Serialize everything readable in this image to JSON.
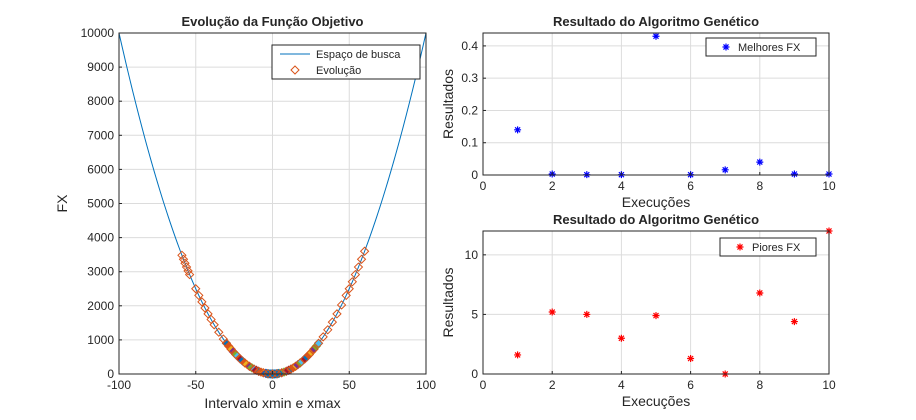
{
  "chart_data": [
    {
      "type": "line+scatter",
      "title": "Evolução da Função Objetivo",
      "xlabel": "Intervalo xmin e xmax",
      "ylabel": "FX",
      "xlim": [
        -100,
        100
      ],
      "ylim": [
        0,
        10000
      ],
      "xticks": [
        -100,
        -50,
        0,
        50,
        100
      ],
      "yticks": [
        0,
        1000,
        2000,
        3000,
        4000,
        5000,
        6000,
        7000,
        8000,
        9000,
        10000
      ],
      "grid": true,
      "legend": {
        "placement": "top-right",
        "entries": [
          "Espaço de busca",
          "Evolução"
        ]
      },
      "series": [
        {
          "name": "Espaço de busca",
          "kind": "line",
          "function": "x^2",
          "color": "#0072BD"
        },
        {
          "name": "Evolução",
          "kind": "scatter",
          "marker": "diamond",
          "color": "#D95319",
          "x": [
            -59,
            -58,
            -57,
            -56,
            -55,
            -54,
            -50,
            -48,
            -46,
            -44,
            -42,
            -40,
            -38,
            -35,
            -32,
            -30,
            -27,
            -24,
            -21,
            -18,
            -15,
            -12,
            -9,
            -6,
            -3,
            0,
            3,
            6,
            9,
            12,
            15,
            18,
            21,
            24,
            27,
            30,
            33,
            36,
            39,
            42,
            45,
            48,
            50,
            52,
            54,
            56,
            58,
            60
          ]
        }
      ]
    },
    {
      "type": "scatter",
      "title": "Resultado do Algoritmo Genético",
      "xlabel": "Execuções",
      "ylabel": "Resultados",
      "xlim": [
        0,
        10
      ],
      "ylim": [
        0,
        0.44
      ],
      "xticks": [
        0,
        2,
        4,
        6,
        8,
        10
      ],
      "yticks": [
        0,
        0.1,
        0.2,
        0.3,
        0.4
      ],
      "grid": true,
      "legend": {
        "placement": "top-right",
        "entries": [
          "Melhores FX"
        ]
      },
      "series": [
        {
          "name": "Melhores FX",
          "marker": "asterisk",
          "color": "#0000FF",
          "x": [
            1,
            2,
            3,
            4,
            5,
            6,
            7,
            8,
            9,
            10
          ],
          "values": [
            0.14,
            0.003,
            0.001,
            0.001,
            0.43,
            0.001,
            0.016,
            0.04,
            0.003,
            0.003
          ]
        }
      ]
    },
    {
      "type": "scatter",
      "title": "Resultado do Algoritmo Genético",
      "xlabel": "Execuções",
      "ylabel": "Resultados",
      "xlim": [
        0,
        10
      ],
      "ylim": [
        0,
        12
      ],
      "xticks": [
        0,
        2,
        4,
        6,
        8,
        10
      ],
      "yticks": [
        0,
        5,
        10
      ],
      "grid": true,
      "legend": {
        "placement": "top-right",
        "entries": [
          "Piores FX"
        ]
      },
      "series": [
        {
          "name": "Piores FX",
          "marker": "asterisk",
          "color": "#FF0000",
          "x": [
            1,
            2,
            3,
            4,
            5,
            6,
            7,
            8,
            9,
            10
          ],
          "values": [
            1.6,
            5.2,
            5.0,
            3.0,
            4.9,
            1.3,
            0,
            6.8,
            4.4,
            12.0
          ]
        }
      ]
    }
  ]
}
